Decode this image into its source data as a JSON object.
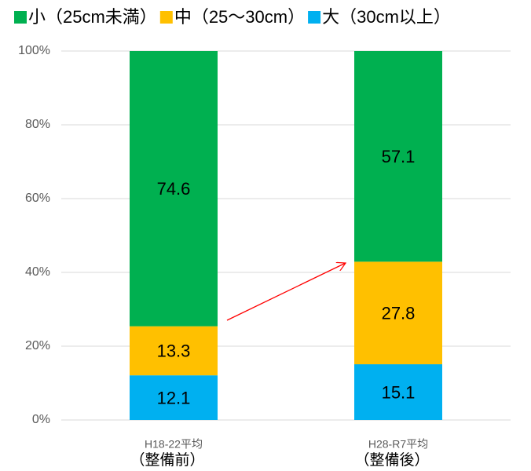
{
  "chart_data": {
    "type": "stacked_bar",
    "categories": [
      "H18-22平均",
      "H28-R7平均"
    ],
    "category_notes": [
      "（整備前）",
      "（整備後）"
    ],
    "series": [
      {
        "name": "小（25cm未満）",
        "color": "#00b050",
        "values": [
          74.6,
          57.1
        ]
      },
      {
        "name": "中（25～30cm）",
        "color": "#ffc000",
        "values": [
          13.3,
          27.8
        ]
      },
      {
        "name": "大（30cm以上）",
        "color": "#00b0f0",
        "values": [
          12.1,
          15.1
        ]
      }
    ],
    "ylim": [
      0,
      100
    ],
    "yticks": [
      {
        "value": 0,
        "label": "0%"
      },
      {
        "value": 20,
        "label": "20%"
      },
      {
        "value": 40,
        "label": "40%"
      },
      {
        "value": 60,
        "label": "60%"
      },
      {
        "value": 80,
        "label": "80%"
      },
      {
        "value": 100,
        "label": "100%"
      }
    ],
    "grid": true,
    "legend": "top"
  }
}
